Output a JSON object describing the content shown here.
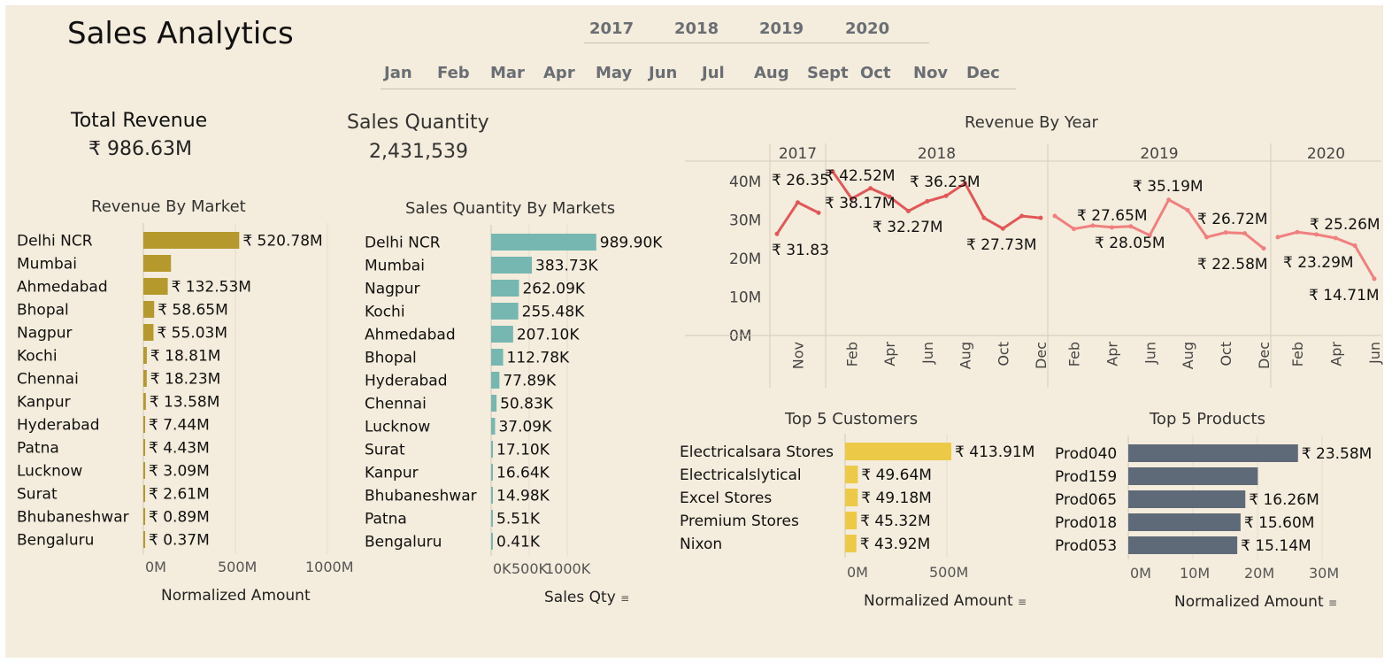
{
  "header": {
    "title": "Sales Analytics"
  },
  "filters": {
    "years": [
      "2017",
      "2018",
      "2019",
      "2020"
    ],
    "months": [
      "Jan",
      "Feb",
      "Mar",
      "Apr",
      "May",
      "Jun",
      "Jul",
      "Aug",
      "Sept",
      "Oct",
      "Nov",
      "Dec"
    ]
  },
  "kpis": {
    "revenue_label": "Total Revenue",
    "revenue_value": "₹ 986.63M",
    "quantity_label": "Sales Quantity",
    "quantity_value": "2,431,539"
  },
  "colors": {
    "revenue_market": "#b5992c",
    "qty_market": "#76b7b2",
    "customers": "#edc948",
    "products": "#5f6a78",
    "line": "#e15759",
    "line_light": "#f08080"
  },
  "icons": {
    "sort": "sort-descending-icon"
  },
  "chart_data": [
    {
      "id": "revenue_by_market",
      "type": "bar",
      "orientation": "horizontal",
      "title": "Revenue By Market",
      "xlabel": "Normalized Amount",
      "xlim": [
        0,
        1000
      ],
      "xticks": [
        "0M",
        "500M",
        "1000M"
      ],
      "categories": [
        "Delhi NCR",
        "Mumbai",
        "Ahmedabad",
        "Bhopal",
        "Nagpur",
        "Kochi",
        "Chennai",
        "Kanpur",
        "Hyderabad",
        "Patna",
        "Lucknow",
        "Surat",
        "Bhubaneshwar",
        "Bengaluru"
      ],
      "values": [
        520.78,
        150,
        132.53,
        58.65,
        55.03,
        18.81,
        18.23,
        13.58,
        7.44,
        4.43,
        3.09,
        2.61,
        0.89,
        0.37
      ],
      "labels": [
        "₹ 520.78M",
        "",
        "₹ 132.53M",
        "₹ 58.65M",
        "₹ 55.03M",
        "₹ 18.81M",
        "₹ 18.23M",
        "₹ 13.58M",
        "₹ 7.44M",
        "₹ 4.43M",
        "₹ 3.09M",
        "₹ 2.61M",
        "₹ 0.89M",
        "₹ 0.37M"
      ]
    },
    {
      "id": "quantity_by_market",
      "type": "bar",
      "orientation": "horizontal",
      "title": "Sales Quantity By Markets",
      "xlabel": "Sales Qty",
      "xlim": [
        0,
        1000
      ],
      "xticks": [
        "0K",
        "500K",
        "1000K"
      ],
      "categories": [
        "Delhi NCR",
        "Mumbai",
        "Nagpur",
        "Kochi",
        "Ahmedabad",
        "Bhopal",
        "Hyderabad",
        "Chennai",
        "Lucknow",
        "Surat",
        "Kanpur",
        "Bhubaneshwar",
        "Patna",
        "Bengaluru"
      ],
      "values": [
        989.9,
        383.73,
        262.09,
        255.48,
        207.1,
        112.78,
        77.89,
        50.83,
        37.09,
        17.1,
        16.64,
        14.98,
        5.51,
        0.41
      ],
      "labels": [
        "989.90K",
        "383.73K",
        "262.09K",
        "255.48K",
        "207.10K",
        "112.78K",
        "77.89K",
        "50.83K",
        "37.09K",
        "17.10K",
        "16.64K",
        "14.98K",
        "5.51K",
        "0.41K"
      ]
    },
    {
      "id": "revenue_by_year",
      "type": "line",
      "title": "Revenue By Year",
      "ylim": [
        0,
        45
      ],
      "yticks": [
        "0M",
        "10M",
        "20M",
        "30M",
        "40M"
      ],
      "panels": [
        {
          "year": "2017",
          "x": [
            "Oct",
            "Nov",
            "Dec"
          ],
          "values": [
            26.35,
            34.5,
            31.83
          ],
          "ticks": [
            "Nov"
          ],
          "labels": [
            "₹ 26.35",
            "₹ 31.83"
          ]
        },
        {
          "year": "2018",
          "x": [
            "Jan",
            "Feb",
            "Mar",
            "Apr",
            "May",
            "Jun",
            "Jul",
            "Aug",
            "Sep",
            "Oct",
            "Nov",
            "Dec"
          ],
          "values": [
            42.52,
            35.5,
            38.17,
            36.0,
            32.27,
            34.8,
            36.23,
            39.5,
            30.5,
            27.73,
            31.0,
            30.5
          ],
          "ticks": [
            "Feb",
            "Apr",
            "Jun",
            "Aug",
            "Oct",
            "Dec"
          ],
          "labels": [
            "₹ 42.52M",
            "₹ 38.17M",
            "₹ 32.27M",
            "₹ 36.23M",
            "₹ 27.73M"
          ]
        },
        {
          "year": "2019",
          "x": [
            "Jan",
            "Feb",
            "Mar",
            "Apr",
            "May",
            "Jun",
            "Jul",
            "Aug",
            "Sep",
            "Oct",
            "Nov",
            "Dec"
          ],
          "values": [
            31.0,
            27.65,
            28.5,
            28.05,
            28.3,
            26.0,
            35.19,
            32.5,
            25.5,
            26.72,
            26.5,
            22.58
          ],
          "ticks": [
            "Feb",
            "Apr",
            "Jun",
            "Aug",
            "Oct",
            "Dec"
          ],
          "labels": [
            "₹ 27.65M",
            "₹ 28.05M",
            "₹ 35.19M",
            "₹ 26.72M",
            "₹ 22.58M"
          ]
        },
        {
          "year": "2020",
          "x": [
            "Jan",
            "Feb",
            "Mar",
            "Apr",
            "May",
            "Jun"
          ],
          "values": [
            25.5,
            26.8,
            26.2,
            25.26,
            23.29,
            14.71
          ],
          "ticks": [
            "Feb",
            "Apr",
            "Jun"
          ],
          "labels": [
            "₹ 25.26M",
            "₹ 23.29M",
            "₹ 14.71M"
          ]
        }
      ]
    },
    {
      "id": "top_customers",
      "type": "bar",
      "orientation": "horizontal",
      "title": "Top 5 Customers",
      "xlabel": "Normalized Amount",
      "xlim": [
        0,
        800
      ],
      "xticks": [
        "0M",
        "500M"
      ],
      "categories": [
        "Electricalsara Stores",
        "Electricalslytical",
        "Excel Stores",
        "Premium Stores",
        "Nixon"
      ],
      "values": [
        413.91,
        49.64,
        49.18,
        45.32,
        43.92
      ],
      "labels": [
        "₹ 413.91M",
        "₹ 49.64M",
        "₹ 49.18M",
        "₹ 45.32M",
        "₹ 43.92M"
      ]
    },
    {
      "id": "top_products",
      "type": "bar",
      "orientation": "horizontal",
      "title": "Top 5 Products",
      "xlabel": "Normalized Amount",
      "xlim": [
        0,
        30
      ],
      "xticks": [
        "0M",
        "10M",
        "20M",
        "30M"
      ],
      "categories": [
        "Prod040",
        "Prod159",
        "Prod065",
        "Prod018",
        "Prod053"
      ],
      "values": [
        23.58,
        18.0,
        16.26,
        15.6,
        15.14
      ],
      "labels": [
        "₹ 23.58M",
        "",
        "₹ 16.26M",
        "₹ 15.60M",
        "₹ 15.14M"
      ]
    }
  ]
}
